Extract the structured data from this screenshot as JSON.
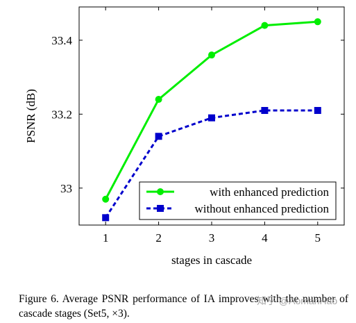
{
  "chart_data": {
    "type": "line",
    "x": [
      1,
      2,
      3,
      4,
      5
    ],
    "series": [
      {
        "name": "with enhanced prediction",
        "values": [
          32.97,
          33.24,
          33.36,
          33.44,
          33.45
        ],
        "color": "#00ee00",
        "style": "solid",
        "marker": "circle"
      },
      {
        "name": "without enhanced prediction",
        "values": [
          32.92,
          33.14,
          33.19,
          33.21,
          33.21
        ],
        "color": "#0000cc",
        "style": "dashed",
        "marker": "square"
      }
    ],
    "xlabel": "stages in cascade",
    "ylabel": "PSNR (dB)",
    "xticks": [
      "1",
      "2",
      "3",
      "4",
      "5"
    ],
    "yticks": [
      "33",
      "33.2",
      "33.4"
    ],
    "ytick_values": [
      33.0,
      33.2,
      33.4
    ],
    "xlim": [
      0.5,
      5.5
    ],
    "ylim": [
      32.9,
      33.49
    ],
    "grid": false,
    "legend_position": "lower-right"
  },
  "caption": "Figure 6. Average PSNR performance of IA improves with the number of cascade stages (Set5, ×3).",
  "watermark": "知乎 @AomanHao"
}
